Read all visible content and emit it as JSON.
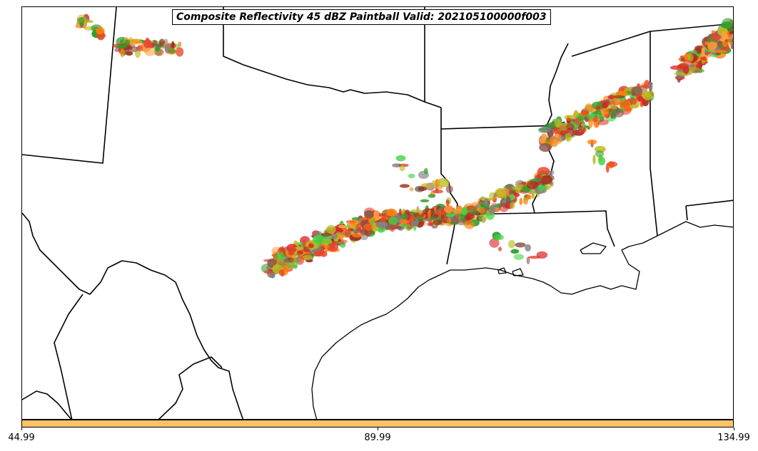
{
  "title": "Composite Reflectivity 45 dBZ Paintball Valid: 202105100000f003",
  "colorbar": {
    "color": "#ffc266",
    "ticks": [
      "44.99",
      "89.99",
      "134.99"
    ]
  },
  "paintball_colors": [
    "#d62728",
    "#ff7f0e",
    "#2ca02c",
    "#8c564b",
    "#7f7f7f",
    "#bcbd22",
    "#ff9f40",
    "#e8452a",
    "#44d444",
    "#a03020"
  ],
  "map_features": [
    "state-borders",
    "coastline",
    "storm-band-main",
    "storm-band-northeast",
    "storm-cluster-northwest"
  ]
}
